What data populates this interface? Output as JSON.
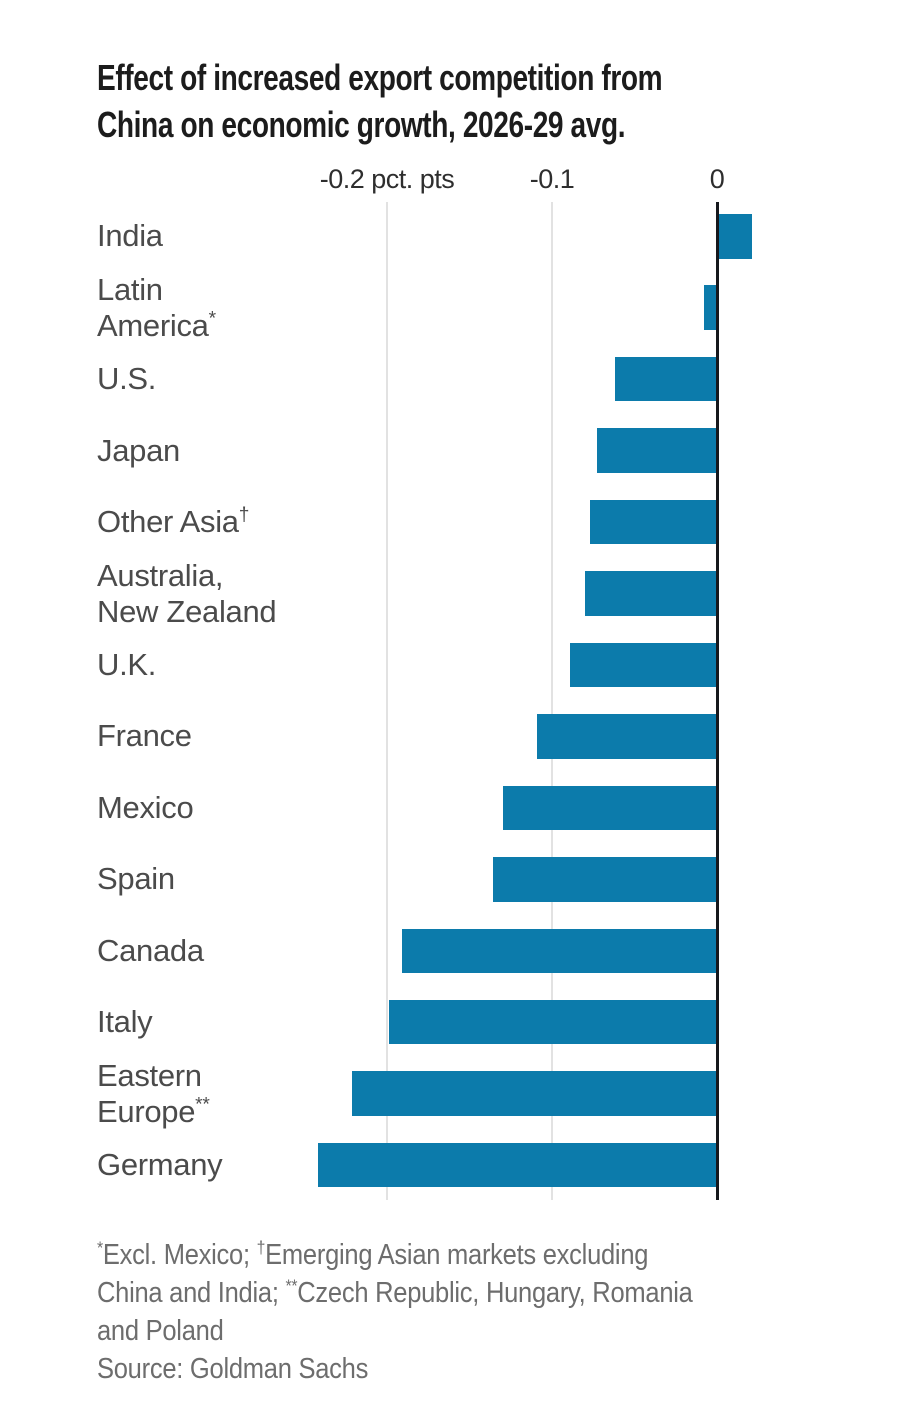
{
  "title": {
    "text": "Effect of increased export competition from China on economic growth, 2026-29 avg.",
    "lines": [
      "Effect of increased export competition from",
      "China on economic growth, 2026-29 avg."
    ]
  },
  "source": "Source: Goldman Sachs",
  "colors": {
    "bg": "#ffffff",
    "bar": "#0c7bab",
    "title": "#1c1c1c",
    "label": "#4b4b4b",
    "axisLabel": "#2e2e2e",
    "grid": "#e2e2e2",
    "axis": "#16181d",
    "footnote": "#6d6d6d"
  },
  "chart_data": {
    "type": "bar",
    "orientation": "horizontal",
    "title": "Effect of increased export competition from China on economic growth, 2026-29 avg.",
    "xlabel": "pct. pts",
    "ylabel": "",
    "xlim": [
      -0.26,
      0.035
    ],
    "grid": "vertical-light",
    "legend": "none",
    "axis_ticks": [
      {
        "label": "-0.2 pct. pts",
        "value": -0.2
      },
      {
        "label": "-0.1",
        "value": -0.1
      },
      {
        "label": "0",
        "value": 0
      }
    ],
    "categories": [
      "India",
      "Latin America*",
      "U.S.",
      "Japan",
      "Other Asia†",
      "Australia, New Zealand",
      "U.K.",
      "France",
      "Mexico",
      "Spain",
      "Canada",
      "Italy",
      "Eastern Europe**",
      "Germany"
    ],
    "values": [
      0.021,
      -0.008,
      -0.062,
      -0.073,
      -0.077,
      -0.08,
      -0.089,
      -0.109,
      -0.13,
      -0.136,
      -0.191,
      -0.199,
      -0.221,
      -0.242
    ],
    "rows": [
      {
        "label": "India",
        "lines": [
          "India"
        ],
        "sup": "",
        "value": 0.021
      },
      {
        "label": "Latin America",
        "lines": [
          "Latin",
          "America"
        ],
        "sup": "*",
        "value": -0.008
      },
      {
        "label": "U.S.",
        "lines": [
          "U.S."
        ],
        "sup": "",
        "value": -0.062
      },
      {
        "label": "Japan",
        "lines": [
          "Japan"
        ],
        "sup": "",
        "value": -0.073
      },
      {
        "label": "Other Asia",
        "lines": [
          "Other Asia"
        ],
        "sup": "†",
        "value": -0.077
      },
      {
        "label": "Australia, New Zealand",
        "lines": [
          "Australia,",
          "New Zealand"
        ],
        "sup": "",
        "value": -0.08
      },
      {
        "label": "U.K.",
        "lines": [
          "U.K."
        ],
        "sup": "",
        "value": -0.089
      },
      {
        "label": "France",
        "lines": [
          "France"
        ],
        "sup": "",
        "value": -0.109
      },
      {
        "label": "Mexico",
        "lines": [
          "Mexico"
        ],
        "sup": "",
        "value": -0.13
      },
      {
        "label": "Spain",
        "lines": [
          "Spain"
        ],
        "sup": "",
        "value": -0.136
      },
      {
        "label": "Canada",
        "lines": [
          "Canada"
        ],
        "sup": "",
        "value": -0.191
      },
      {
        "label": "Italy",
        "lines": [
          "Italy"
        ],
        "sup": "",
        "value": -0.199
      },
      {
        "label": "Eastern Europe",
        "lines": [
          "Eastern",
          "Europe"
        ],
        "sup": "**",
        "value": -0.221
      },
      {
        "label": "Germany",
        "lines": [
          "Germany"
        ],
        "sup": "",
        "value": -0.242
      }
    ]
  },
  "footnote": {
    "lines": [
      [
        {
          "sup": "*"
        },
        {
          "t": "Excl. Mexico; "
        },
        {
          "sup": "†"
        },
        {
          "t": "Emerging Asian markets excluding"
        }
      ],
      [
        {
          "t": "China and India; "
        },
        {
          "sup": "**"
        },
        {
          "t": "Czech Republic, Hungary, Romania"
        }
      ],
      [
        {
          "t": "and Poland"
        }
      ]
    ]
  }
}
